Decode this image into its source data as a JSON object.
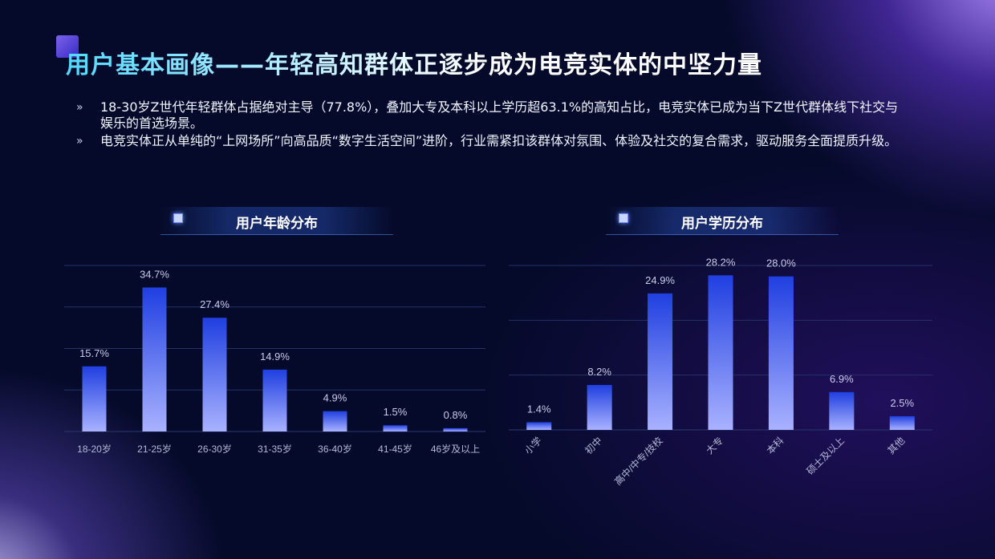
{
  "title": "用户基本画像——年轻高知群体正逐步成为电竞实体的中坚力量",
  "bullets": [
    "18-30岁Z世代年轻群体占据绝对主导（77.8%），叠加大专及本科以上学历超63.1%的高知占比，电竞实体已成为当下Z世代群体线下社交与娱乐的首选场景。",
    "电竞实体正从单纯的“上网场所”向高品质“数字生活空间”进阶，行业需紧扣该群体对氛围、体验及社交的复合需求，驱动服务全面提质升级。"
  ],
  "bullet_icon": "double-chevron-right-icon",
  "chart_data": [
    {
      "type": "bar",
      "title": "用户年龄分布",
      "categories": [
        "18-20岁",
        "21-25岁",
        "26-30岁",
        "31-35岁",
        "36-40岁",
        "41-45岁",
        "46岁及以上"
      ],
      "values": [
        15.7,
        34.7,
        27.4,
        14.9,
        4.9,
        1.5,
        0.8
      ],
      "value_labels": [
        "15.7%",
        "34.7%",
        "27.4%",
        "14.9%",
        "4.9%",
        "1.5%",
        "0.8%"
      ],
      "ylim": [
        0,
        40
      ],
      "grid": true,
      "xlabel": "",
      "ylabel": ""
    },
    {
      "type": "bar",
      "title": "用户学历分布",
      "categories": [
        "小学",
        "初中",
        "高中/中专/技校",
        "大专",
        "本科",
        "硕士及以上",
        "其他"
      ],
      "values": [
        1.4,
        8.2,
        24.9,
        28.2,
        28.0,
        6.9,
        2.5
      ],
      "value_labels": [
        "1.4%",
        "8.2%",
        "24.9%",
        "28.2%",
        "28.0%",
        "6.9%",
        "2.5%"
      ],
      "ylim": [
        0,
        30
      ],
      "grid": true,
      "xlabel": "",
      "ylabel": ""
    }
  ],
  "colors": {
    "bar_top": "#1f3fe0",
    "bar_bottom": "#a9b2ff",
    "value_label": "#c8cce8",
    "tick_label": "#b4b9d6",
    "grid": "#243266"
  }
}
